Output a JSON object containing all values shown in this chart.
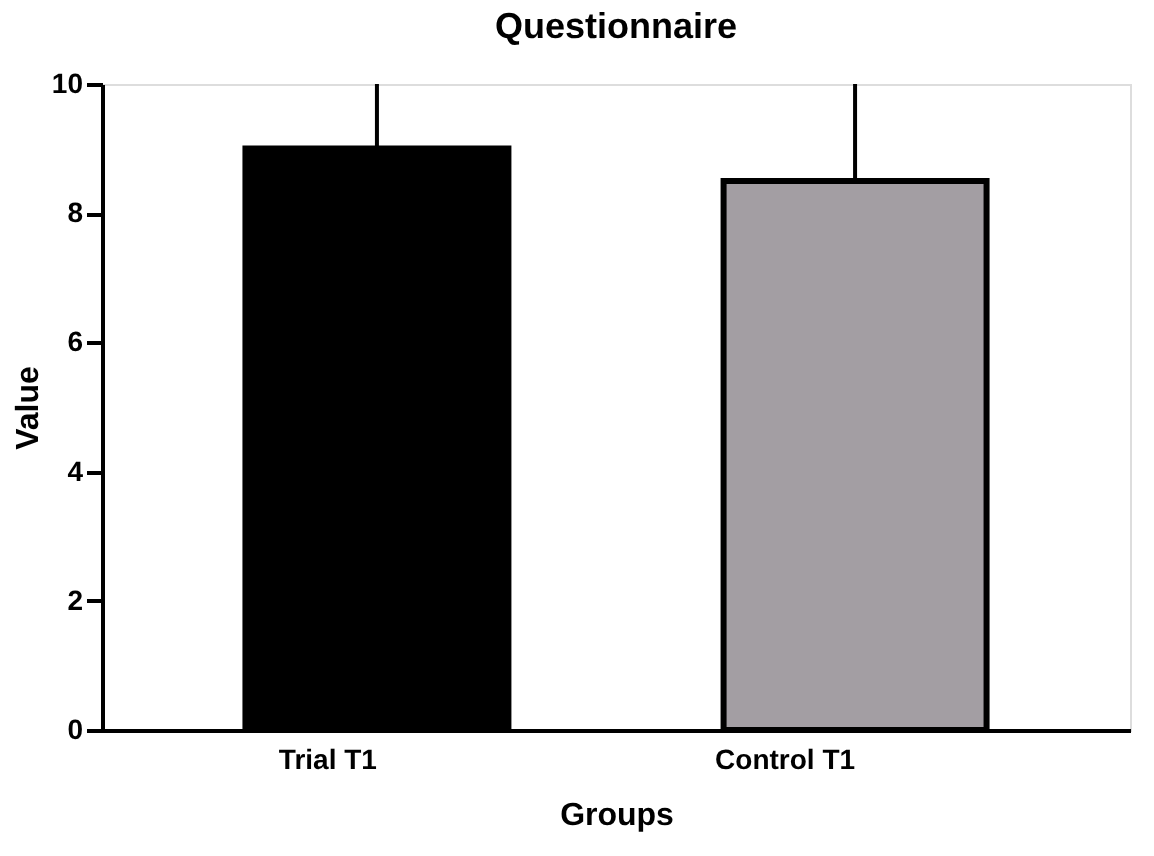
{
  "chart_data": {
    "type": "bar",
    "title": "Questionnaire",
    "xlabel": "Groups",
    "ylabel": "Value",
    "categories": [
      "Trial T1",
      "Control T1"
    ],
    "values": [
      9,
      8.5
    ],
    "colors": [
      "#000000",
      "#a39ea3"
    ],
    "errors": [
      [
        9,
        10
      ],
      [
        8.5,
        10
      ]
    ],
    "ylim": [
      0,
      10
    ],
    "yticks": [
      0,
      2,
      4,
      6,
      8,
      10
    ],
    "grid": false
  }
}
